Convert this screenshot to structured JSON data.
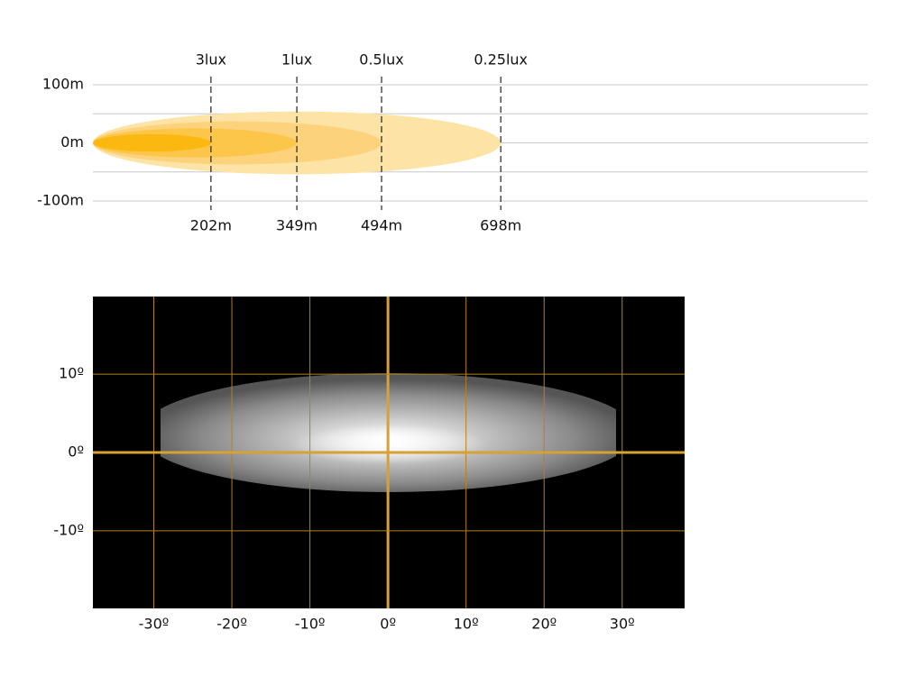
{
  "chart_data": [
    {
      "type": "beam-range",
      "categories": [
        "3lux",
        "1lux",
        "0.5lux",
        "0.25lux"
      ],
      "values": [
        202,
        349,
        494,
        698
      ],
      "value_labels": [
        "202m",
        "349m",
        "494m",
        "698m"
      ],
      "widths": [
        15,
        25,
        37,
        54
      ],
      "colors": [
        "#fbb811",
        "#fcc64a",
        "#fdd27c",
        "#fde3a6"
      ],
      "xlim": [
        0,
        1326
      ],
      "ylim": [
        -100,
        100
      ],
      "yticks": [
        {
          "value": 100,
          "label": "100m"
        },
        {
          "value": 50,
          "label": null
        },
        {
          "value": 0,
          "label": "0m"
        },
        {
          "value": -50,
          "label": null
        },
        {
          "value": -100,
          "label": "-100m"
        }
      ],
      "grid": true
    },
    {
      "type": "beam-pattern",
      "xlim": [
        -37.8,
        38
      ],
      "ylim": [
        -19.9,
        19.9
      ],
      "xticks": [
        {
          "value": -30,
          "label": "-30º"
        },
        {
          "value": -20,
          "label": "-20º"
        },
        {
          "value": -10,
          "label": "-10º"
        },
        {
          "value": 0,
          "label": "0º"
        },
        {
          "value": 10,
          "label": "10º"
        },
        {
          "value": 20,
          "label": "20º"
        },
        {
          "value": 30,
          "label": "30º"
        }
      ],
      "yticks": [
        {
          "value": 10,
          "label": "10º"
        },
        {
          "value": 0,
          "label": "0º"
        },
        {
          "value": -10,
          "label": "-10º"
        }
      ],
      "grid": true
    }
  ]
}
